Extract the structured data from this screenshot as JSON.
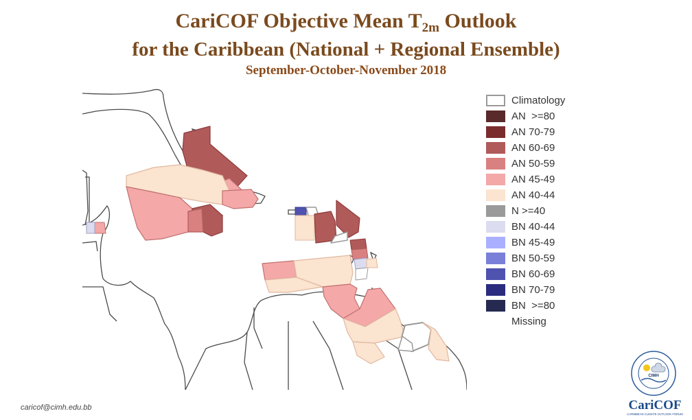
{
  "header": {
    "title_pre": "CariCOF Objective Mean T",
    "title_sub": "2m",
    "title_post": " Outlook",
    "title_line2": "for the Caribbean (National + Regional Ensemble)",
    "subtitle": "September-October-November 2018"
  },
  "legend": [
    {
      "label": "Climatology",
      "fill": "#ffffff",
      "border": "#999999"
    },
    {
      "label": "AN  >=80",
      "fill": "#5a2a2a",
      "border": "#5a2a2a"
    },
    {
      "label": "AN 70-79",
      "fill": "#7a2c2c",
      "border": "#7a2c2c"
    },
    {
      "label": "AN 60-69",
      "fill": "#b05a5a",
      "border": "#b05a5a"
    },
    {
      "label": "AN 50-59",
      "fill": "#d98080",
      "border": "#d98080"
    },
    {
      "label": "AN 45-49",
      "fill": "#f4a8a8",
      "border": "#f4a8a8"
    },
    {
      "label": "AN 40-44",
      "fill": "#fbe4d0",
      "border": "#fbe4d0"
    },
    {
      "label": "N >=40",
      "fill": "#9a9a9a",
      "border": "#9a9a9a"
    },
    {
      "label": "BN 40-44",
      "fill": "#dcdcf0",
      "border": "#dcdcf0"
    },
    {
      "label": "BN 45-49",
      "fill": "#aab0ff",
      "border": "#aab0ff"
    },
    {
      "label": "BN 50-59",
      "fill": "#7a80d8",
      "border": "#7a80d8"
    },
    {
      "label": "BN 60-69",
      "fill": "#5052b0",
      "border": "#5052b0"
    },
    {
      "label": "BN 70-79",
      "fill": "#2a2c80",
      "border": "#2a2c80"
    },
    {
      "label": "BN  >=80",
      "fill": "#262a50",
      "border": "#262a50"
    },
    {
      "label": "Missing",
      "fill": "#ffffff",
      "border": "#ffffff"
    }
  ],
  "footer": {
    "email": "caricof@cimh.edu.bb",
    "logo_text": "CariCOF",
    "logo_tagline": "CARIBBEAN CLIMATE OUTLOOK FORUM",
    "seal_text": "CIMH"
  }
}
